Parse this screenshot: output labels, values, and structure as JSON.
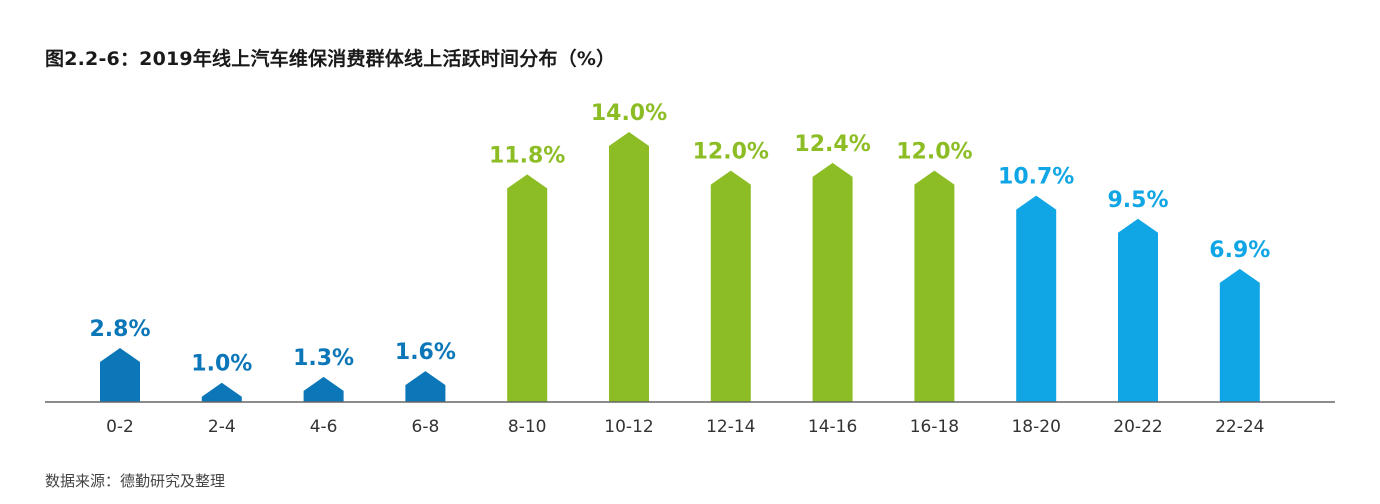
{
  "title": "图2.2-6：2019年线上汽车维保消费群体线上活跃时间分布（%）",
  "source": "数据来源：德勤研究及整理",
  "colors": {
    "night": "#0b76b8",
    "day": "#8cbd25",
    "evening": "#10a6e6",
    "axis": "#666666"
  },
  "chart_data": {
    "type": "bar",
    "title": "图2.2-6：2019年线上汽车维保消费群体线上活跃时间分布（%）",
    "xlabel": "",
    "ylabel": "",
    "unit": "%",
    "ylim": [
      0,
      14
    ],
    "categories": [
      "0-2",
      "2-4",
      "4-6",
      "6-8",
      "8-10",
      "10-12",
      "12-14",
      "14-16",
      "16-18",
      "18-20",
      "20-22",
      "22-24"
    ],
    "values": [
      2.8,
      1.0,
      1.3,
      1.6,
      11.8,
      14.0,
      12.0,
      12.4,
      12.0,
      10.7,
      9.5,
      6.9
    ],
    "labels": [
      "2.8%",
      "1.0%",
      "1.3%",
      "1.6%",
      "11.8%",
      "14.0%",
      "12.0%",
      "12.4%",
      "12.0%",
      "10.7%",
      "9.5%",
      "6.9%"
    ],
    "color_groups": [
      "night",
      "night",
      "night",
      "night",
      "day",
      "day",
      "day",
      "day",
      "day",
      "evening",
      "evening",
      "evening"
    ],
    "grid": false,
    "legend": "none"
  }
}
